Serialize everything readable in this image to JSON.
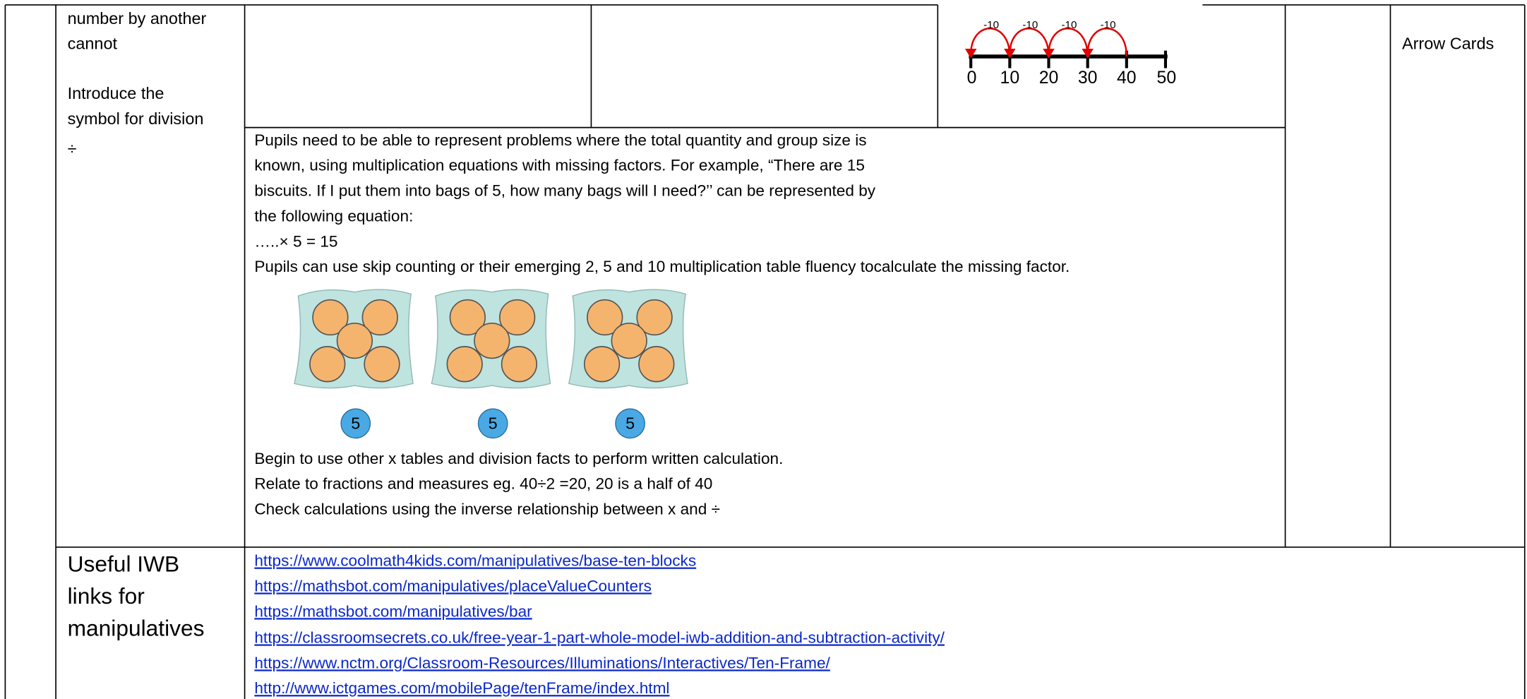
{
  "left_column": [
    "number by another",
    "cannot",
    "Introduce the",
    "symbol for division",
    "÷"
  ],
  "number_line": {
    "jump_labels": [
      "-10",
      "-10",
      "-10",
      "-10"
    ],
    "tick_labels": [
      "0",
      "10",
      "20",
      "30",
      "40",
      "50"
    ]
  },
  "right_column": "Arrow Cards",
  "main_text": {
    "paragraph_lines": [
      "Pupils need to be able to represent problems where the total quantity and group size is",
      "known, using multiplication equations with missing factors. For example, “There are 15",
      "biscuits. If I put them into bags of 5, how many bags will I need?’’ can be represented by",
      "the following equation:",
      "…..× 5 =  15",
      "Pupils can use skip counting or their emerging 2, 5 and 10 multiplication table fluency tocalculate the missing factor."
    ],
    "bag_labels": [
      "5",
      "5",
      "5"
    ],
    "closing_lines": [
      "Begin to use other x tables and division facts to perform written calculation.",
      "Relate to fractions and measures eg. 40÷2 =20, 20 is a half of 40",
      "Check calculations  using the inverse relationship between x and ÷"
    ]
  },
  "resources": {
    "heading_lines": [
      "Useful IWB",
      "links for",
      "manipulatives"
    ],
    "links": [
      "https://www.coolmath4kids.com/manipulatives/base-ten-blocks",
      "https://mathsbot.com/manipulatives/placeValueCounters",
      "https://mathsbot.com/manipulatives/bar",
      "https://classroomsecrets.co.uk/free-year-1-part-whole-model-iwb-addition-and-subtraction-activity/",
      "https://www.nctm.org/Classroom-Resources/Illuminations/Interactives/Ten-Frame/",
      "http://www.ictgames.com/mobilePage/tenFrame/index.html"
    ]
  }
}
